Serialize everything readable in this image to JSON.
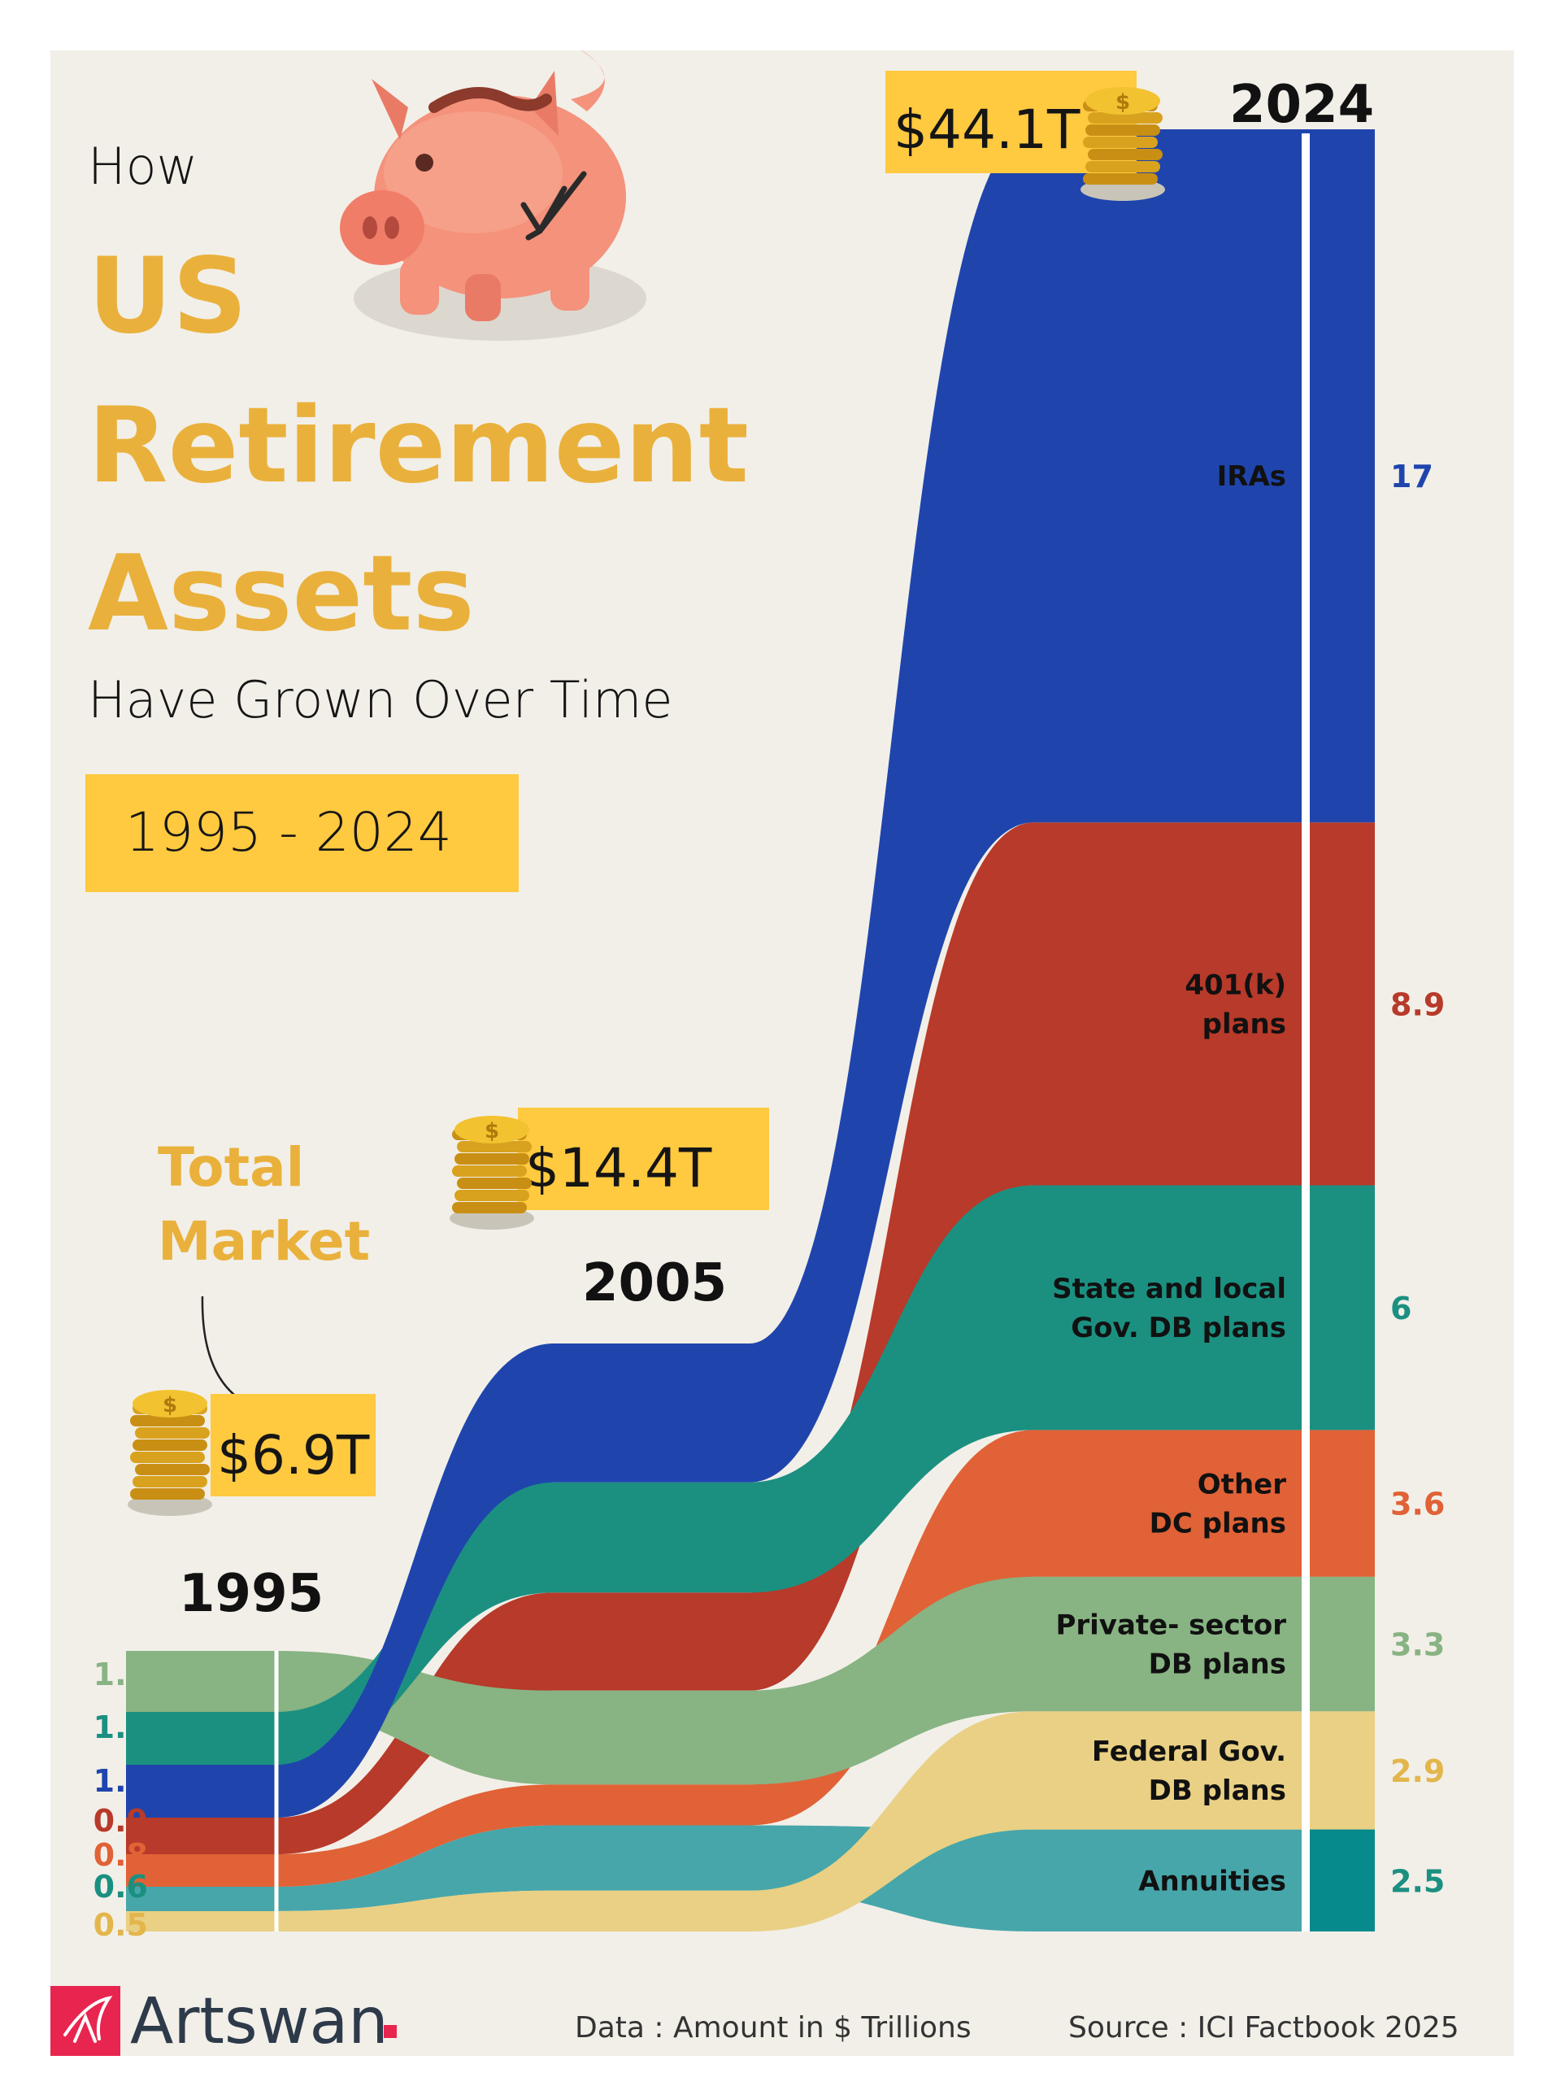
{
  "title": {
    "line1": "How",
    "line2": "US",
    "line3": "Retirement",
    "line4": "Assets",
    "line5": "Have Grown Over Time",
    "period": "1995 - 2024"
  },
  "annotation": {
    "total_market_line1": "Total",
    "total_market_line2": "Market"
  },
  "colors": {
    "background": "#f2efe8",
    "accent_yellow": "#ffc940",
    "title_yellow": "#e9b13c",
    "iras": "#1f45ad",
    "k401": "#b73a2a",
    "state_local_db": "#1b9081",
    "other_dc": "#e06236",
    "private_db": "#88b383",
    "federal_db": "#e9d084",
    "annuities": "#47a6aa",
    "annuities_bar": "#078a8c"
  },
  "chart_data": {
    "type": "sankey",
    "unit": "$ Trillions",
    "years": [
      "1995",
      "2005",
      "2024"
    ],
    "totals": [
      "$6.9T",
      "$14.4T",
      "$44.1T"
    ],
    "series": [
      {
        "name": "IRAs",
        "label_1995": "1.3",
        "label_2024": "17",
        "values": [
          1.3,
          3.4,
          17.0
        ]
      },
      {
        "name": "401(k) plans",
        "label_1995": "0.9",
        "label_2024": "8.9",
        "values": [
          0.9,
          2.4,
          8.9
        ]
      },
      {
        "name": "State and local Gov. DB plans",
        "label_1995": "1.3",
        "label_2024": "6",
        "values": [
          1.3,
          2.7,
          6.0
        ]
      },
      {
        "name": "Other DC plans",
        "label_1995": "0.8",
        "label_2024": "3.6",
        "values": [
          0.8,
          1.0,
          3.6
        ]
      },
      {
        "name": "Private- sector DB plans",
        "label_1995": "1.5",
        "label_2024": "3.3",
        "values": [
          1.5,
          2.3,
          3.3
        ]
      },
      {
        "name": "Federal Gov. DB plans",
        "label_1995": "0.5",
        "label_2024": "2.9",
        "values": [
          0.5,
          1.0,
          2.9
        ]
      },
      {
        "name": "Annuities",
        "label_1995": "0.6",
        "label_2024": "2.5",
        "values": [
          0.6,
          1.6,
          2.5
        ]
      }
    ],
    "labels_2024": {
      "IRAs": [
        "IRAs"
      ],
      "401(k) plans": [
        "401(k)",
        "plans"
      ],
      "State and local Gov. DB plans": [
        "State and local",
        "Gov. DB plans"
      ],
      "Other DC plans": [
        "Other",
        "DC plans"
      ],
      "Private- sector DB plans": [
        "Private- sector",
        "DB plans"
      ],
      "Federal Gov. DB plans": [
        "Federal Gov.",
        "DB plans"
      ],
      "Annuities": [
        "Annuities"
      ]
    }
  },
  "footer": {
    "brand": "Artswan",
    "brand_dot": ".",
    "data_note": "Data : Amount in $ Trillions",
    "source": "Source :  ICI Factbook 2025"
  }
}
